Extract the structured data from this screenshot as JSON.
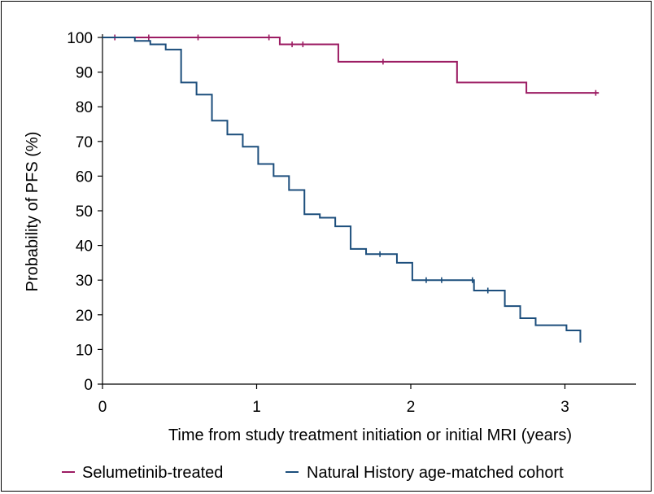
{
  "chart_data": {
    "type": "line",
    "subtype": "kaplan-meier step",
    "xlabel": "Time from study treatment initiation or initial MRI (years)",
    "ylabel": "Probability of PFS (%)",
    "xlim": [
      0,
      3.45
    ],
    "ylim": [
      0,
      100
    ],
    "xticks": [
      0,
      1,
      2,
      3
    ],
    "yticks": [
      0,
      10,
      20,
      30,
      40,
      50,
      60,
      70,
      80,
      90,
      100
    ],
    "grid": false,
    "legend_position": "bottom",
    "series": [
      {
        "name": "Selumetinib-treated",
        "color": "#9c1c63",
        "steps": [
          [
            0,
            100
          ],
          [
            1.15,
            98
          ],
          [
            1.53,
            93
          ],
          [
            2.3,
            87
          ],
          [
            2.75,
            84
          ],
          [
            3.22,
            84
          ]
        ],
        "censor": [
          0.08,
          0.3,
          0.62,
          1.08,
          1.23,
          1.3,
          1.82,
          3.2
        ]
      },
      {
        "name": "Natural History age-matched cohort",
        "color": "#1c4e7c",
        "steps": [
          [
            0,
            100
          ],
          [
            0.21,
            99
          ],
          [
            0.31,
            98
          ],
          [
            0.41,
            96.5
          ],
          [
            0.51,
            87
          ],
          [
            0.61,
            83.5
          ],
          [
            0.71,
            76
          ],
          [
            0.81,
            72
          ],
          [
            0.91,
            68.5
          ],
          [
            1.01,
            63.5
          ],
          [
            1.11,
            60
          ],
          [
            1.21,
            56
          ],
          [
            1.31,
            49
          ],
          [
            1.41,
            48
          ],
          [
            1.51,
            45.5
          ],
          [
            1.61,
            39
          ],
          [
            1.71,
            37.5
          ],
          [
            1.91,
            35
          ],
          [
            2.01,
            30
          ],
          [
            2.41,
            27
          ],
          [
            2.61,
            22.5
          ],
          [
            2.71,
            19
          ],
          [
            2.81,
            17
          ],
          [
            3.01,
            15.5
          ],
          [
            3.1,
            12
          ]
        ],
        "censor": [
          1.8,
          2.1,
          2.2,
          2.4,
          2.5
        ]
      }
    ]
  }
}
